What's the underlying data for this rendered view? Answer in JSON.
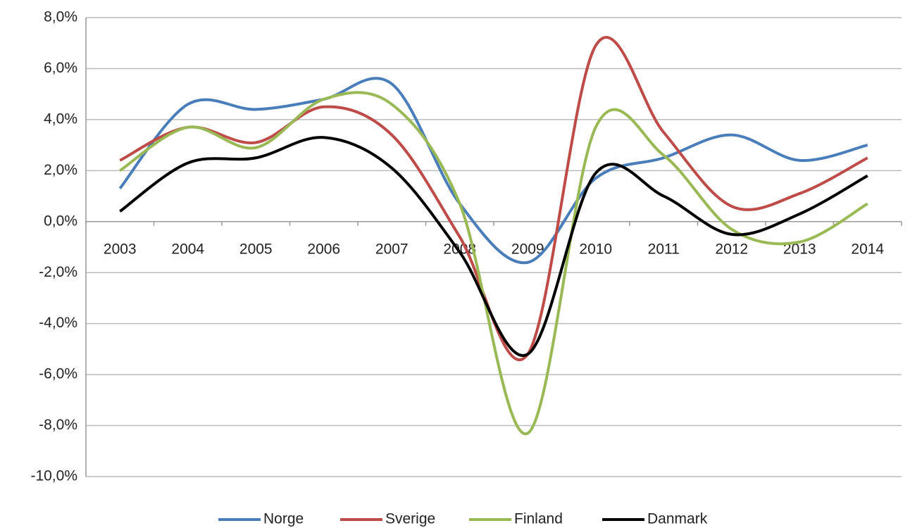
{
  "chart_data": {
    "type": "line",
    "categories": [
      "2003",
      "2004",
      "2005",
      "2006",
      "2007",
      "2008",
      "2009",
      "2010",
      "2011",
      "2012",
      "2013",
      "2014"
    ],
    "series": [
      {
        "name": "Norge",
        "color": "#4a7ebb",
        "values": [
          1.3,
          4.6,
          4.4,
          4.8,
          5.4,
          0.7,
          -1.6,
          1.7,
          2.5,
          3.4,
          2.4,
          3.0
        ]
      },
      {
        "name": "Sverige",
        "color": "#be4b48",
        "values": [
          2.4,
          3.7,
          3.1,
          4.5,
          3.4,
          -0.6,
          -5.2,
          6.9,
          3.5,
          0.6,
          1.1,
          2.5
        ]
      },
      {
        "name": "Finland",
        "color": "#98b954",
        "values": [
          2.0,
          3.7,
          2.9,
          4.8,
          4.6,
          0.7,
          -8.3,
          3.7,
          2.6,
          -0.3,
          -0.8,
          0.7
        ]
      },
      {
        "name": "Danmark",
        "color": "#000000",
        "values": [
          0.4,
          2.3,
          2.5,
          3.3,
          2.1,
          -1.2,
          -5.2,
          1.9,
          1.0,
          -0.5,
          0.3,
          1.8
        ]
      }
    ],
    "ylim": [
      -10,
      8
    ],
    "yticks": [
      {
        "value": -10,
        "label": "-10,0%"
      },
      {
        "value": -8,
        "label": "-8,0%"
      },
      {
        "value": -6,
        "label": "-6,0%"
      },
      {
        "value": -4,
        "label": "-4,0%"
      },
      {
        "value": -2,
        "label": "-2,0%"
      },
      {
        "value": 0,
        "label": "0,0%"
      },
      {
        "value": 2,
        "label": "2,0%"
      },
      {
        "value": 4,
        "label": "4,0%"
      },
      {
        "value": 6,
        "label": "6,0%"
      },
      {
        "value": 8,
        "label": "8,0%"
      }
    ],
    "grid": true,
    "smooth": true,
    "legend": "bottom"
  }
}
